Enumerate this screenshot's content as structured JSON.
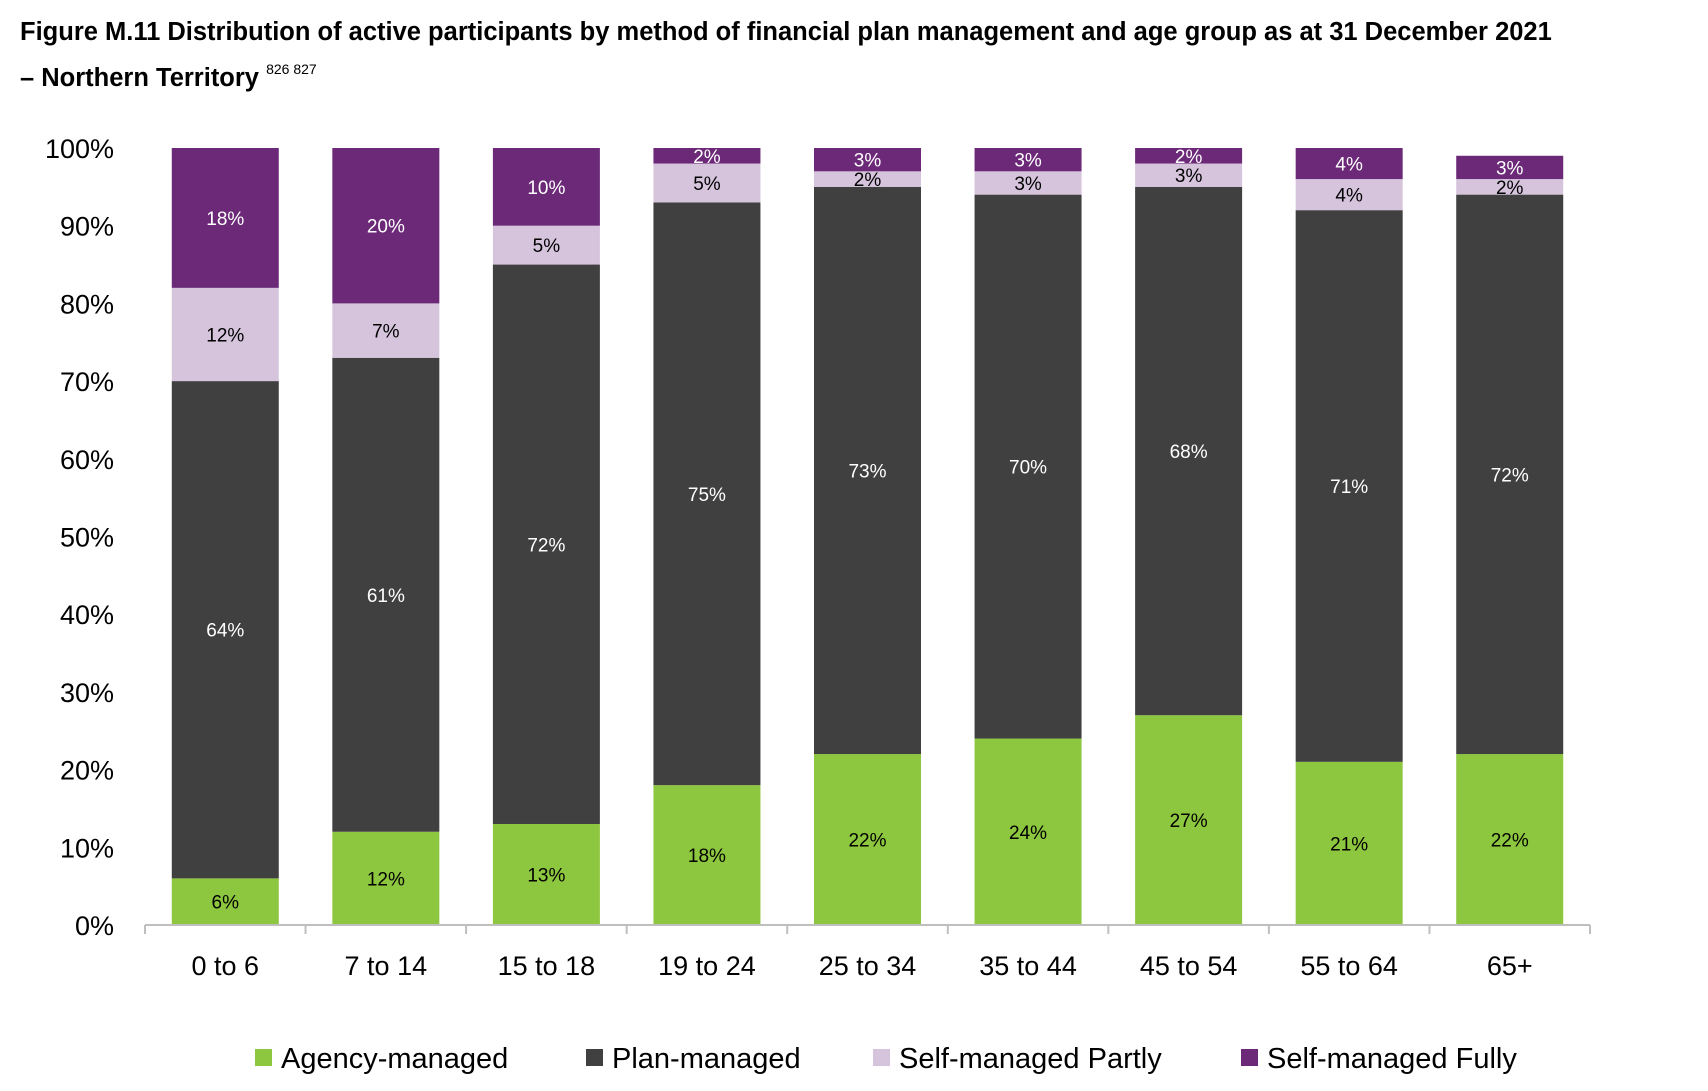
{
  "title": {
    "line1": "Figure M.11 Distribution of active participants by method of financial plan management and age group as at 31 December 2021",
    "line2": "– Northern Territory",
    "footnotes": "826 827"
  },
  "chart_data": {
    "type": "bar",
    "stacked": true,
    "categories": [
      "0 to 6",
      "7 to 14",
      "15 to 18",
      "19 to 24",
      "25 to 34",
      "35 to 44",
      "45 to 54",
      "55 to 64",
      "65+"
    ],
    "series": [
      {
        "name": "Agency-managed",
        "color": "#8dc63f",
        "label_color": "#000000",
        "values": [
          6,
          12,
          13,
          18,
          22,
          24,
          27,
          21,
          22
        ],
        "labels": [
          "6%",
          "12%",
          "13%",
          "18%",
          "22%",
          "24%",
          "27%",
          "21%",
          "22%"
        ]
      },
      {
        "name": "Plan-managed",
        "color": "#404041",
        "label_color": "#ffffff",
        "values": [
          64,
          61,
          72,
          75,
          73,
          70,
          68,
          71,
          72
        ],
        "labels": [
          "64%",
          "61%",
          "72%",
          "75%",
          "73%",
          "70%",
          "68%",
          "71%",
          "72%"
        ]
      },
      {
        "name": "Self-managed Partly",
        "color": "#d5c4dc",
        "label_color": "#000000",
        "values": [
          12,
          7,
          5,
          5,
          2,
          3,
          3,
          4,
          2
        ],
        "labels": [
          "12%",
          "7%",
          "5%",
          "5%",
          "2%",
          "3%",
          "3%",
          "4%",
          "2%"
        ]
      },
      {
        "name": "Self-managed Fully",
        "color": "#6b2978",
        "label_color": "#ffffff",
        "values": [
          18,
          20,
          10,
          2,
          3,
          3,
          2,
          4,
          3
        ],
        "labels": [
          "18%",
          "20%",
          "10%",
          "2%",
          "3%",
          "3%",
          "2%",
          "4%",
          "3%"
        ]
      }
    ],
    "yticks": [
      "0%",
      "10%",
      "20%",
      "30%",
      "40%",
      "50%",
      "60%",
      "70%",
      "80%",
      "90%",
      "100%"
    ],
    "ylim": [
      0,
      100
    ],
    "grid": false,
    "legend_position": "bottom"
  }
}
